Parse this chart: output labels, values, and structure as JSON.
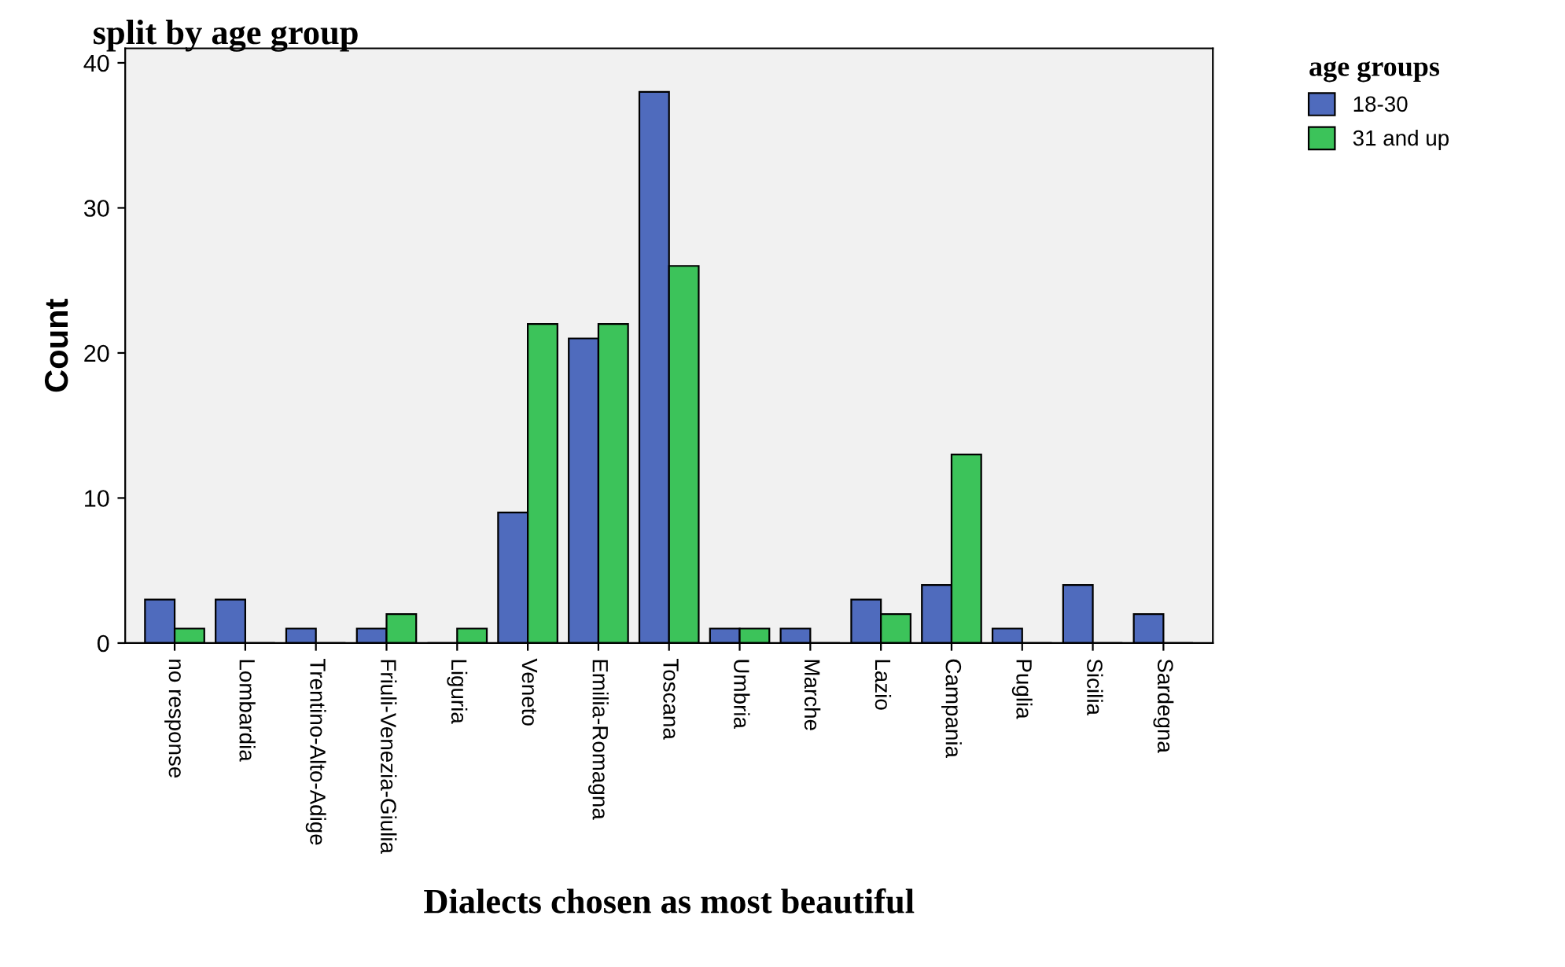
{
  "chart_data": {
    "type": "bar",
    "title": "split by age group",
    "xlabel": "Dialects chosen as most beautiful",
    "ylabel": "Count",
    "legend_title": "age groups",
    "categories": [
      "no response",
      "Lombardia",
      "Trentino-Alto-Adige",
      "Friuli-Venezia-Giulia",
      "Liguria",
      "Veneto",
      "Emilia-Romagna",
      "Toscana",
      "Umbria",
      "Marche",
      "Lazio",
      "Campania",
      "Puglia",
      "Sicilia",
      "Sardegna"
    ],
    "series": [
      {
        "name": "18-30",
        "color": "#4f6bbd",
        "values": [
          3,
          3,
          1,
          1,
          0,
          9,
          21,
          38,
          1,
          1,
          3,
          4,
          1,
          4,
          2
        ]
      },
      {
        "name": "31 and up",
        "color": "#3cc35a",
        "values": [
          1,
          0,
          0,
          2,
          1,
          22,
          22,
          26,
          1,
          0,
          2,
          13,
          0,
          0,
          0
        ]
      }
    ],
    "ylim": [
      0,
      41
    ],
    "yticks": [
      0,
      10,
      20,
      30,
      40
    ],
    "grid": false,
    "legend": "top right"
  }
}
